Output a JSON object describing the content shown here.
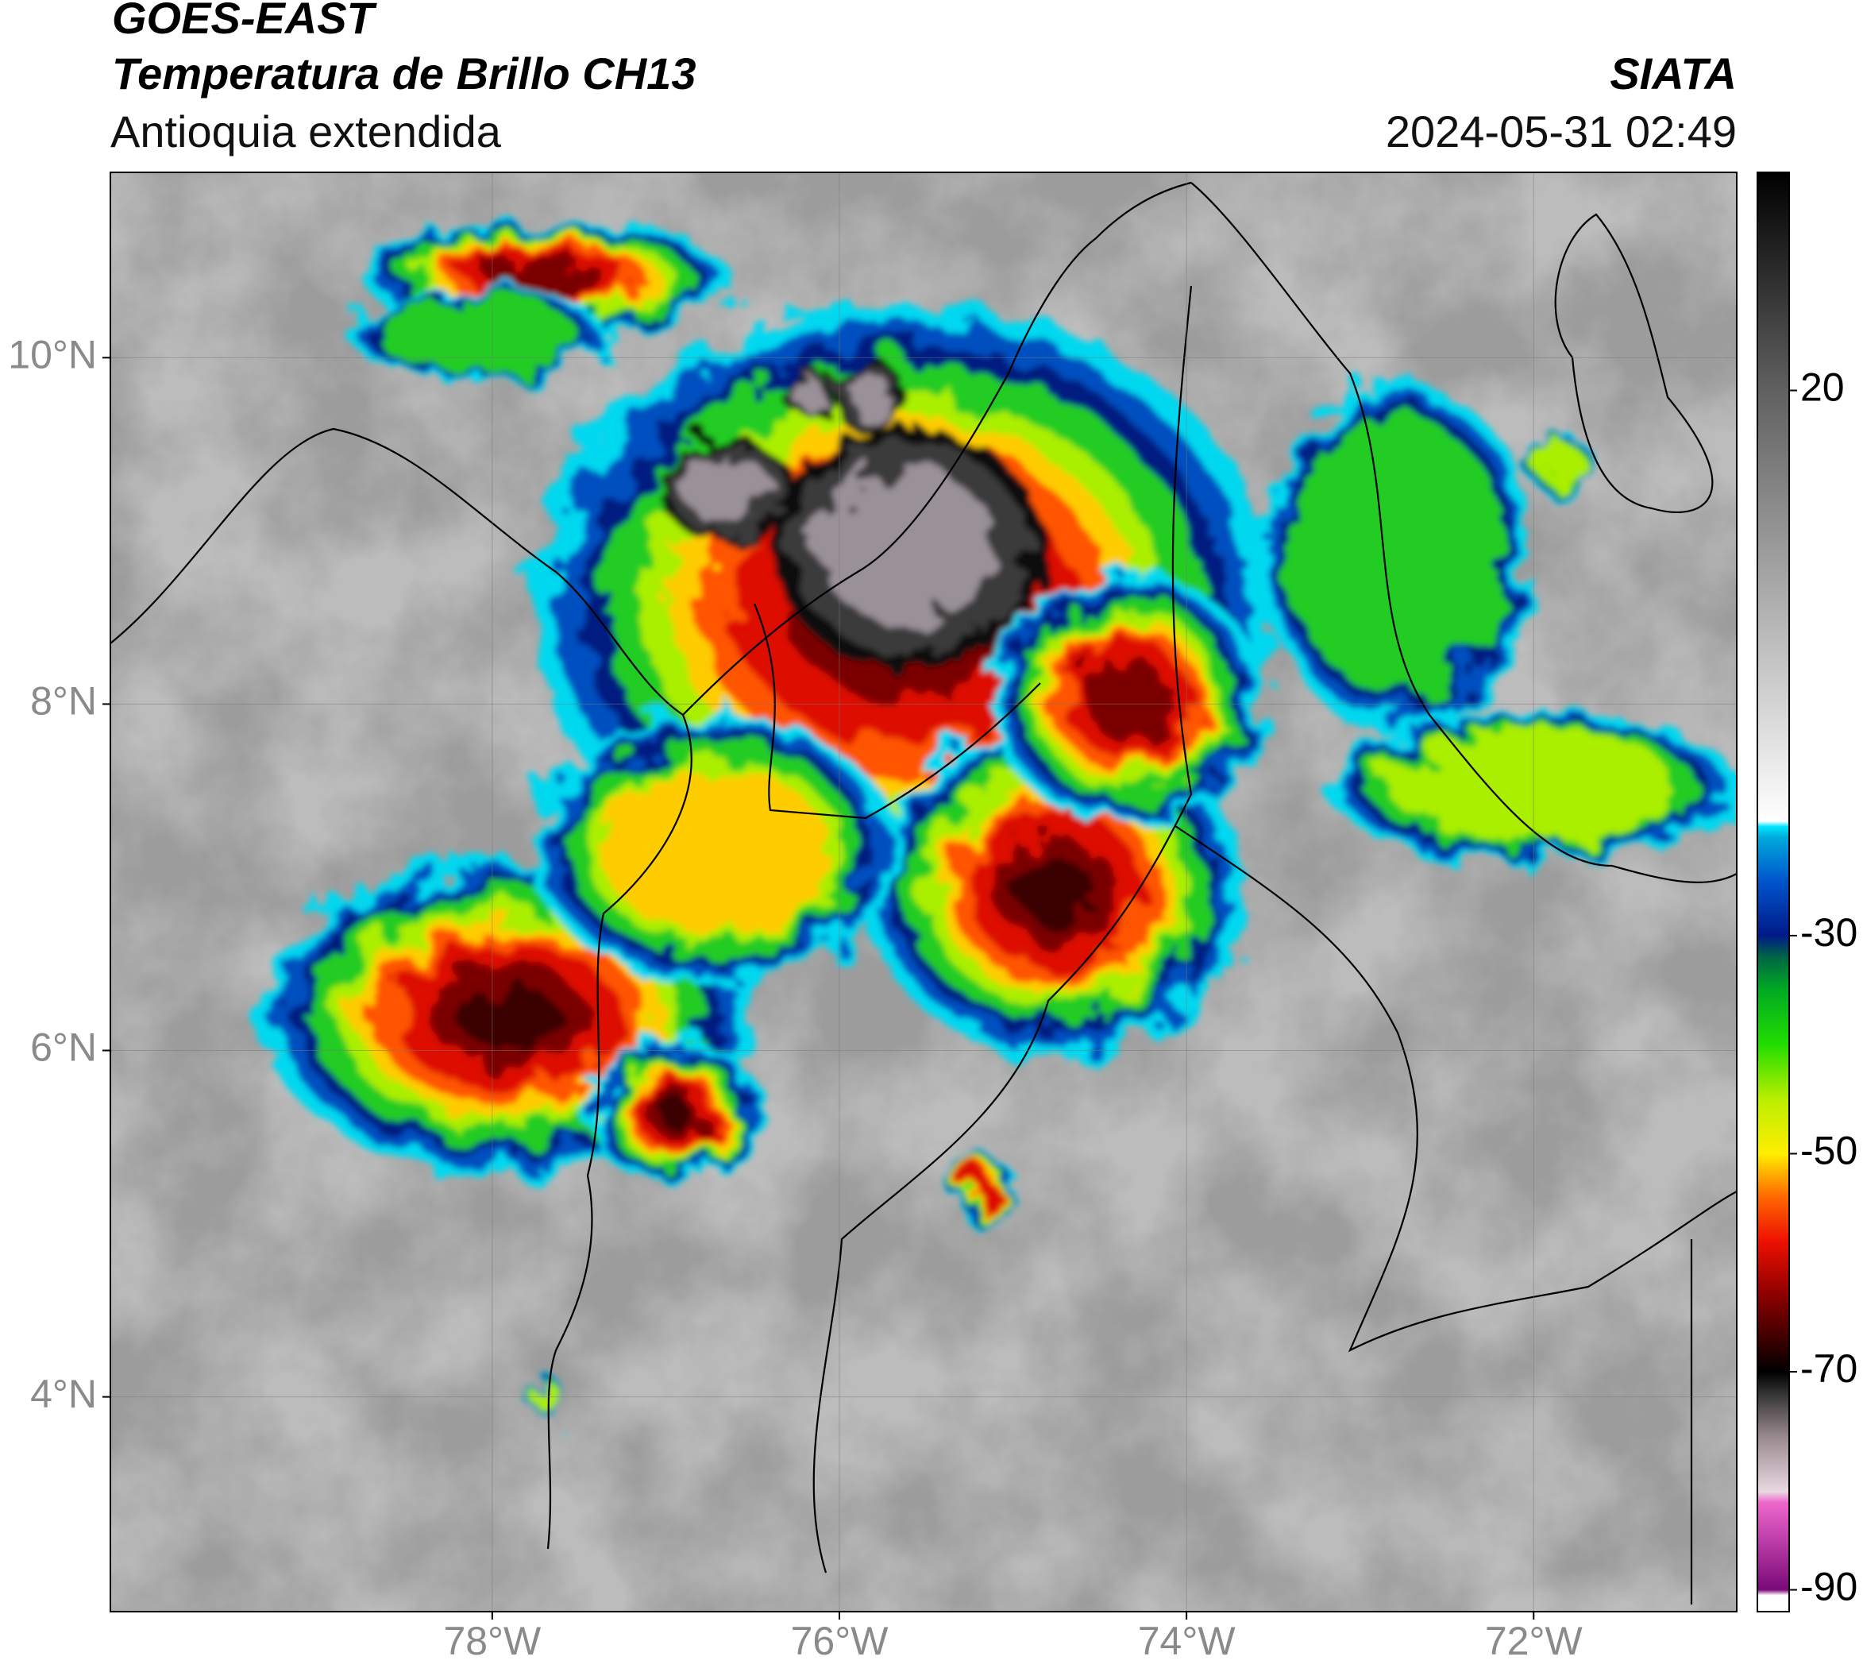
{
  "header": {
    "title": "GOES-EAST",
    "subtitle": "Temperatura de Brillo CH13",
    "region": "Antioquia extendida",
    "source": "SIATA",
    "timestamp": "2024-05-31 02:49"
  },
  "map": {
    "xlim": [
      -80.2,
      -70.83
    ],
    "ylim": [
      2.76,
      11.07
    ],
    "xticks": [
      {
        "value": -78,
        "label": "78°W"
      },
      {
        "value": -76,
        "label": "76°W"
      },
      {
        "value": -74,
        "label": "74°W"
      },
      {
        "value": -72,
        "label": "72°W"
      }
    ],
    "yticks": [
      {
        "value": 10,
        "label": "10°N"
      },
      {
        "value": 8,
        "label": "8°N"
      },
      {
        "value": 6,
        "label": "6°N"
      },
      {
        "value": 4,
        "label": "4°N"
      }
    ],
    "grid": true
  },
  "colorbar": {
    "lim": [
      -92,
      40
    ],
    "ticks": [
      20,
      -30,
      -50,
      -70,
      -90
    ],
    "colorscale": [
      [
        -92,
        "#ffffff"
      ],
      [
        -90.5,
        "#ffffff"
      ],
      [
        -90,
        "#7a0a7a"
      ],
      [
        -82,
        "#ee66cc"
      ],
      [
        -81,
        "#e8d8e0"
      ],
      [
        -76,
        "#9a8a90"
      ],
      [
        -72,
        "#333333"
      ],
      [
        -70,
        "#000000"
      ],
      [
        -68,
        "#2a0000"
      ],
      [
        -63,
        "#8b0000"
      ],
      [
        -58,
        "#ee1100"
      ],
      [
        -54,
        "#ff6600"
      ],
      [
        -50,
        "#ffee00"
      ],
      [
        -45,
        "#bbee00"
      ],
      [
        -40,
        "#22dd00"
      ],
      [
        -35,
        "#00aa22"
      ],
      [
        -32,
        "#006644"
      ],
      [
        -30,
        "#001a88"
      ],
      [
        -25,
        "#0055cc"
      ],
      [
        -21,
        "#00aadd"
      ],
      [
        -20,
        "#00e5ff"
      ],
      [
        -19.5,
        "#ffffff"
      ],
      [
        20,
        "#606060"
      ],
      [
        40,
        "#000000"
      ]
    ]
  }
}
